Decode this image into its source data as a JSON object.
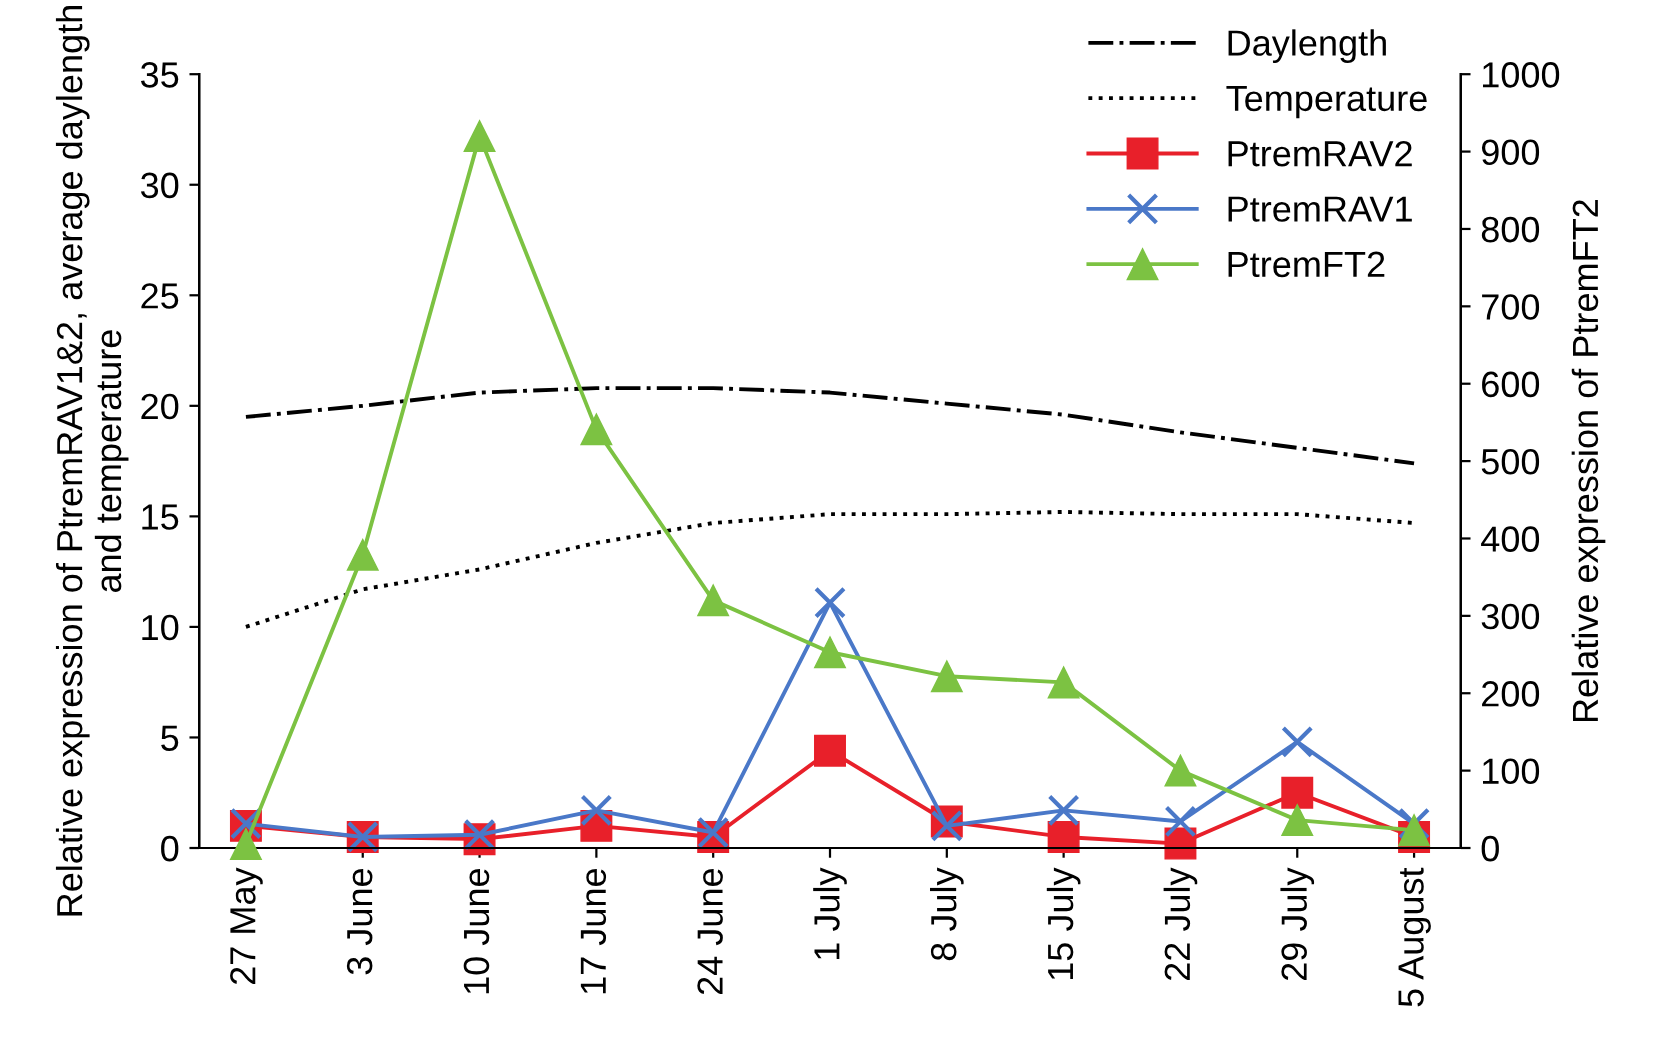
{
  "chart_data": {
    "type": "line",
    "categories": [
      "27 May",
      "3 June",
      "10 June",
      "17 June",
      "24 June",
      "1 July",
      "8 July",
      "15 July",
      "22 July",
      "29 July",
      "5 August"
    ],
    "ylabel": "Relative expression of PtremRAV1&2, average daylength and temperature",
    "y2label": "Relative expression of PtremFT2",
    "ylim": [
      0,
      35
    ],
    "yticks": [
      0,
      5,
      10,
      15,
      20,
      25,
      30,
      35
    ],
    "y2lim": [
      0,
      1000
    ],
    "y2ticks": [
      0,
      100,
      200,
      300,
      400,
      500,
      600,
      700,
      800,
      900,
      1000
    ],
    "grid": false,
    "legend": "top right",
    "series": [
      {
        "name": "Daylength",
        "color": "#000000",
        "line_style": "dashdot",
        "marker": "none",
        "values": [
          19.5,
          20.0,
          20.6,
          20.8,
          20.8,
          20.6,
          20.1,
          19.6,
          18.8,
          18.1,
          17.4
        ]
      },
      {
        "name": "Temperature",
        "color": "#000000",
        "line_style": "dotted",
        "marker": "none",
        "values": [
          10.0,
          11.7,
          12.6,
          13.8,
          14.7,
          15.1,
          15.1,
          15.2,
          15.1,
          15.1,
          14.7
        ]
      },
      {
        "name": "PtremRAV2",
        "color": "#e8202a",
        "line_style": "solid",
        "marker": "square",
        "values": [
          1.0,
          0.5,
          0.4,
          1.0,
          0.5,
          4.4,
          1.2,
          0.5,
          0.2,
          2.5,
          0.5
        ]
      },
      {
        "name": "PtremRAV1",
        "color": "#4a78c8",
        "line_style": "solid",
        "marker": "cross",
        "values": [
          1.1,
          0.5,
          0.6,
          1.7,
          0.7,
          11.1,
          1.0,
          1.7,
          1.2,
          4.8,
          1.1
        ]
      },
      {
        "name": "PtremFT2",
        "color": "#7cc242",
        "line_style": "solid",
        "marker": "triangle",
        "axis": "y2",
        "values": [
          5,
          379,
          920,
          541,
          320,
          253,
          222,
          214,
          100,
          36,
          23
        ]
      }
    ]
  }
}
